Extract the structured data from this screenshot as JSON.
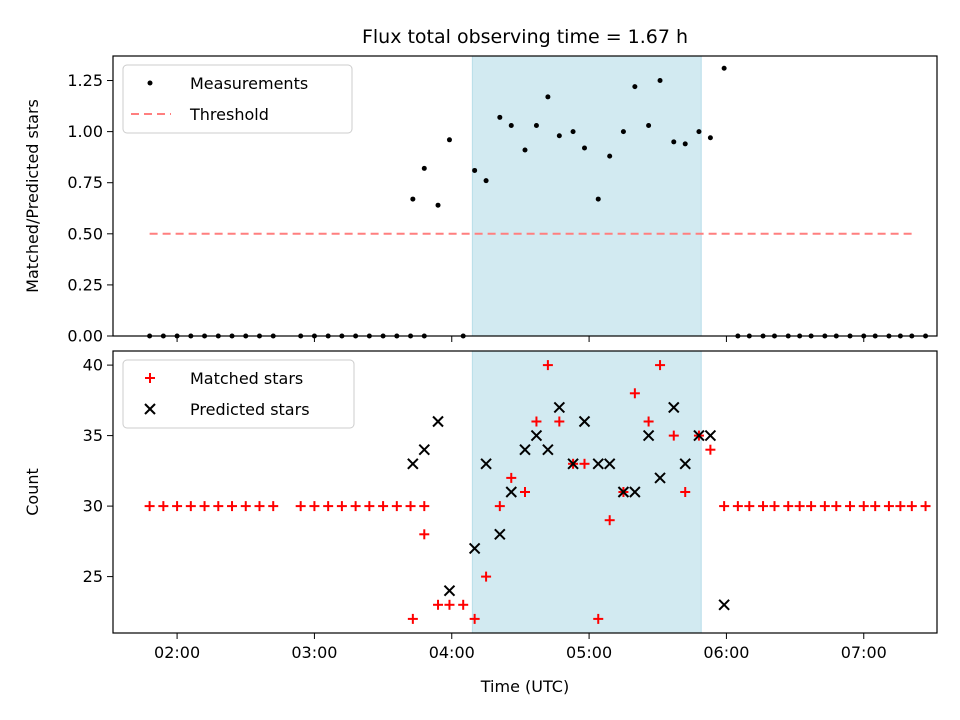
{
  "title": "Flux total observing time = 1.67 h",
  "colors": {
    "span": "#add8e6",
    "threshold": "#ff7f7f",
    "matched": "#ff0000",
    "predicted": "#000000",
    "measurement": "#000000"
  },
  "chart_data": [
    {
      "type": "scatter",
      "ylabel": "Matched/Predicted stars",
      "xlabel": "",
      "xlim": [
        "01:32",
        "07:32"
      ],
      "ylim": [
        0,
        1.37
      ],
      "yticks": [
        "0.00",
        "0.25",
        "0.50",
        "0.75",
        "1.00",
        "1.25"
      ],
      "ytick_values": [
        0,
        0.25,
        0.5,
        0.75,
        1.0,
        1.25
      ],
      "grid": false,
      "legend_position": "top-left",
      "span": [
        "04:09",
        "05:49"
      ],
      "series": [
        {
          "name": "Measurements",
          "marker": "dot",
          "points": [
            [
              "01:48",
              0
            ],
            [
              "01:54",
              0
            ],
            [
              "02:00",
              0
            ],
            [
              "02:06",
              0
            ],
            [
              "02:12",
              0
            ],
            [
              "02:18",
              0
            ],
            [
              "02:24",
              0
            ],
            [
              "02:30",
              0
            ],
            [
              "02:36",
              0
            ],
            [
              "02:42",
              0
            ],
            [
              "02:54",
              0
            ],
            [
              "03:00",
              0
            ],
            [
              "03:06",
              0
            ],
            [
              "03:12",
              0
            ],
            [
              "03:18",
              0
            ],
            [
              "03:24",
              0
            ],
            [
              "03:30",
              0
            ],
            [
              "03:36",
              0
            ],
            [
              "03:42",
              0
            ],
            [
              "03:48",
              0
            ],
            [
              "03:43",
              0.67
            ],
            [
              "03:48",
              0.82
            ],
            [
              "03:54",
              0.64
            ],
            [
              "03:59",
              0.96
            ],
            [
              "04:05",
              0
            ],
            [
              "04:10",
              0.81
            ],
            [
              "04:15",
              0.76
            ],
            [
              "04:21",
              1.07
            ],
            [
              "04:26",
              1.03
            ],
            [
              "04:32",
              0.91
            ],
            [
              "04:37",
              1.03
            ],
            [
              "04:42",
              1.17
            ],
            [
              "04:47",
              0.98
            ],
            [
              "04:53",
              1.0
            ],
            [
              "04:58",
              0.92
            ],
            [
              "05:04",
              0.67
            ],
            [
              "05:09",
              0.88
            ],
            [
              "05:15",
              1.0
            ],
            [
              "05:20",
              1.22
            ],
            [
              "05:26",
              1.03
            ],
            [
              "05:31",
              1.25
            ],
            [
              "05:37",
              0.95
            ],
            [
              "05:42",
              0.94
            ],
            [
              "05:48",
              1.0
            ],
            [
              "05:53",
              0.97
            ],
            [
              "05:59",
              1.31
            ],
            [
              "06:05",
              0
            ],
            [
              "06:10",
              0
            ],
            [
              "06:16",
              0
            ],
            [
              "06:21",
              0
            ],
            [
              "06:27",
              0
            ],
            [
              "06:32",
              0
            ],
            [
              "06:37",
              0
            ],
            [
              "06:43",
              0
            ],
            [
              "06:48",
              0
            ],
            [
              "06:54",
              0
            ],
            [
              "07:00",
              0
            ],
            [
              "07:05",
              0
            ],
            [
              "07:11",
              0
            ],
            [
              "07:16",
              0
            ],
            [
              "07:21",
              0
            ],
            [
              "07:27",
              0
            ]
          ]
        },
        {
          "name": "Threshold",
          "marker": "dashed-line",
          "points": [
            [
              "01:48",
              0.5
            ],
            [
              "07:22",
              0.5
            ]
          ]
        }
      ]
    },
    {
      "type": "scatter",
      "ylabel": "Count",
      "xlabel": "Time (UTC)",
      "xlim": [
        "01:32",
        "07:32"
      ],
      "ylim": [
        21,
        41
      ],
      "yticks": [
        "25",
        "30",
        "35",
        "40"
      ],
      "ytick_values": [
        25,
        30,
        35,
        40
      ],
      "xticks": [
        "02:00",
        "03:00",
        "04:00",
        "05:00",
        "06:00",
        "07:00"
      ],
      "grid": false,
      "legend_position": "top-left",
      "span": [
        "04:09",
        "05:49"
      ],
      "series": [
        {
          "name": "Matched stars",
          "marker": "plus",
          "points": [
            [
              "01:48",
              30
            ],
            [
              "01:54",
              30
            ],
            [
              "02:00",
              30
            ],
            [
              "02:06",
              30
            ],
            [
              "02:12",
              30
            ],
            [
              "02:18",
              30
            ],
            [
              "02:24",
              30
            ],
            [
              "02:30",
              30
            ],
            [
              "02:36",
              30
            ],
            [
              "02:42",
              30
            ],
            [
              "02:54",
              30
            ],
            [
              "03:00",
              30
            ],
            [
              "03:06",
              30
            ],
            [
              "03:12",
              30
            ],
            [
              "03:18",
              30
            ],
            [
              "03:24",
              30
            ],
            [
              "03:30",
              30
            ],
            [
              "03:36",
              30
            ],
            [
              "03:42",
              30
            ],
            [
              "03:48",
              30
            ],
            [
              "03:43",
              22
            ],
            [
              "03:48",
              28
            ],
            [
              "03:54",
              23
            ],
            [
              "03:59",
              23
            ],
            [
              "04:05",
              23
            ],
            [
              "04:10",
              22
            ],
            [
              "04:15",
              25
            ],
            [
              "04:21",
              30
            ],
            [
              "04:26",
              32
            ],
            [
              "04:32",
              31
            ],
            [
              "04:37",
              36
            ],
            [
              "04:42",
              40
            ],
            [
              "04:47",
              36
            ],
            [
              "04:53",
              33
            ],
            [
              "04:58",
              33
            ],
            [
              "05:04",
              22
            ],
            [
              "05:09",
              29
            ],
            [
              "05:15",
              31
            ],
            [
              "05:20",
              38
            ],
            [
              "05:26",
              36
            ],
            [
              "05:31",
              40
            ],
            [
              "05:37",
              35
            ],
            [
              "05:42",
              31
            ],
            [
              "05:48",
              35
            ],
            [
              "05:53",
              34
            ],
            [
              "05:59",
              30
            ],
            [
              "06:05",
              30
            ],
            [
              "06:10",
              30
            ],
            [
              "06:16",
              30
            ],
            [
              "06:21",
              30
            ],
            [
              "06:27",
              30
            ],
            [
              "06:32",
              30
            ],
            [
              "06:37",
              30
            ],
            [
              "06:43",
              30
            ],
            [
              "06:48",
              30
            ],
            [
              "06:54",
              30
            ],
            [
              "07:00",
              30
            ],
            [
              "07:05",
              30
            ],
            [
              "07:11",
              30
            ],
            [
              "07:16",
              30
            ],
            [
              "07:21",
              30
            ],
            [
              "07:27",
              30
            ]
          ]
        },
        {
          "name": "Predicted stars",
          "marker": "x",
          "points": [
            [
              "03:43",
              33
            ],
            [
              "03:48",
              34
            ],
            [
              "03:54",
              36
            ],
            [
              "03:59",
              24
            ],
            [
              "04:10",
              27
            ],
            [
              "04:15",
              33
            ],
            [
              "04:21",
              28
            ],
            [
              "04:26",
              31
            ],
            [
              "04:32",
              34
            ],
            [
              "04:37",
              35
            ],
            [
              "04:42",
              34
            ],
            [
              "04:47",
              37
            ],
            [
              "04:53",
              33
            ],
            [
              "04:58",
              36
            ],
            [
              "05:04",
              33
            ],
            [
              "05:09",
              33
            ],
            [
              "05:15",
              31
            ],
            [
              "05:20",
              31
            ],
            [
              "05:26",
              35
            ],
            [
              "05:31",
              32
            ],
            [
              "05:37",
              37
            ],
            [
              "05:42",
              33
            ],
            [
              "05:48",
              35
            ],
            [
              "05:53",
              35
            ],
            [
              "05:59",
              23
            ]
          ]
        }
      ]
    }
  ]
}
